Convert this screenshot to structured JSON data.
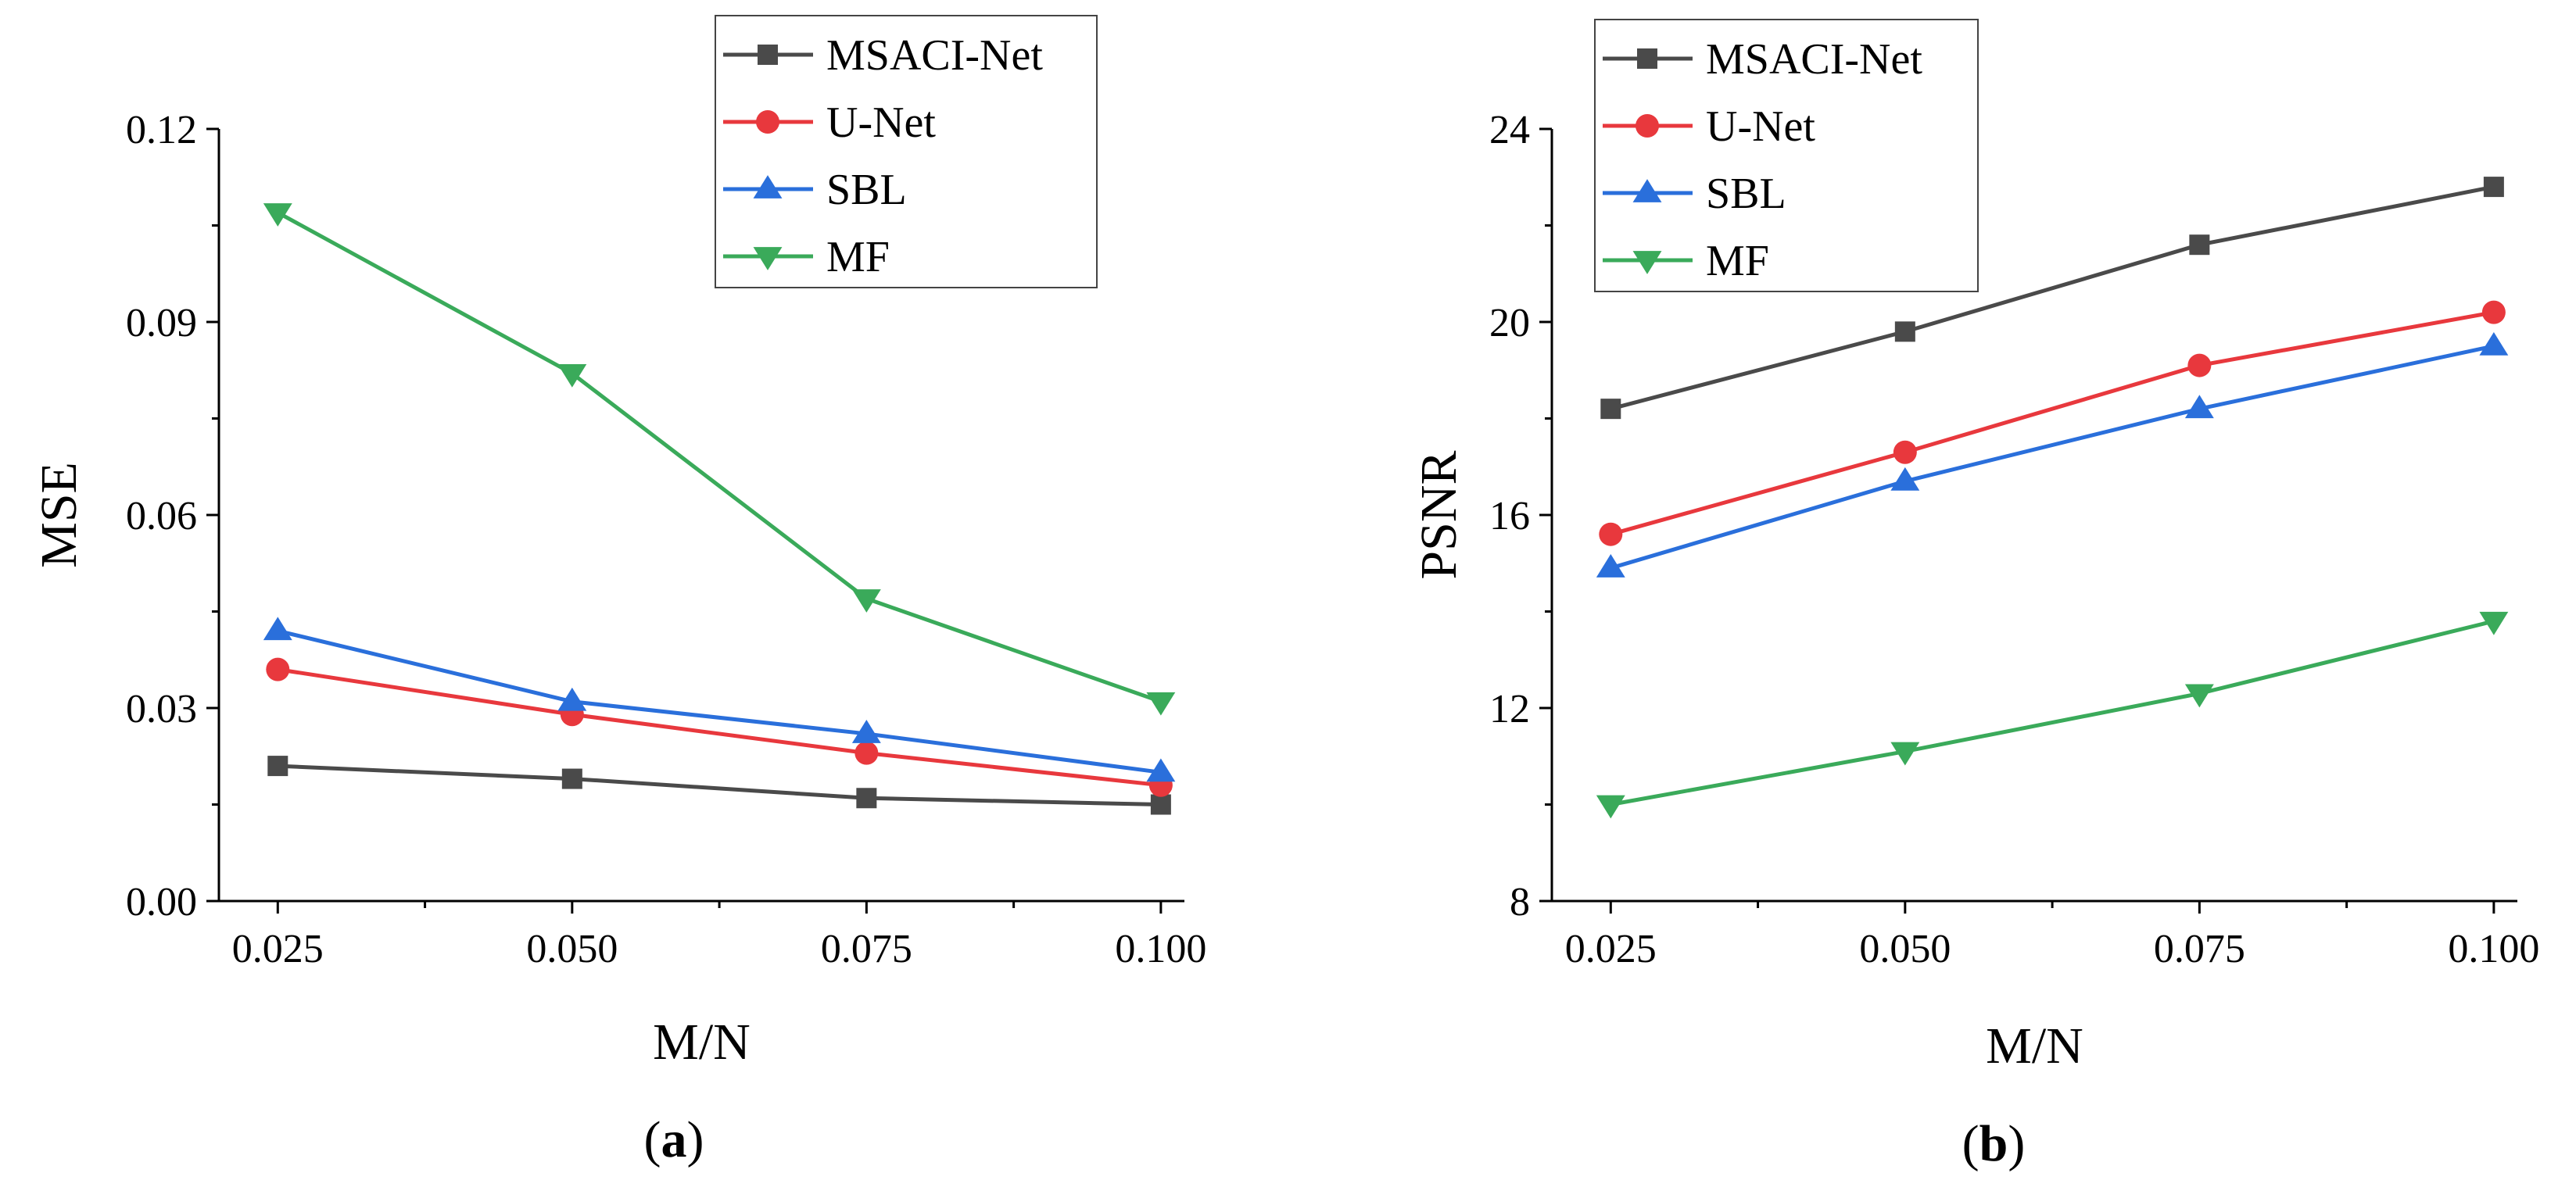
{
  "chart_data": [
    {
      "type": "line",
      "id": "a",
      "caption_letter": "a",
      "xlabel": "M/N",
      "ylabel": "MSE",
      "x": [
        0.025,
        0.05,
        0.075,
        0.1
      ],
      "xticks": [
        "0.025",
        "0.050",
        "0.075",
        "0.100"
      ],
      "xlim": [
        0.02,
        0.102
      ],
      "ylim": [
        0,
        0.12
      ],
      "yticks": [
        "0.00",
        "0.03",
        "0.06",
        "0.09",
        "0.12"
      ],
      "yticks_values": [
        0,
        0.03,
        0.06,
        0.09,
        0.12
      ],
      "legend_position": "top-right",
      "series": [
        {
          "name": "MSACI-Net",
          "marker": "square",
          "color": "#4a4a4a",
          "values": [
            0.021,
            0.019,
            0.016,
            0.015
          ]
        },
        {
          "name": "U-Net",
          "marker": "circle",
          "color": "#e8383d",
          "values": [
            0.036,
            0.029,
            0.023,
            0.018
          ]
        },
        {
          "name": "SBL",
          "marker": "triangle-up",
          "color": "#2a6fdb",
          "values": [
            0.042,
            0.031,
            0.026,
            0.02
          ]
        },
        {
          "name": "MF",
          "marker": "triangle-down",
          "color": "#3aaa5a",
          "values": [
            0.107,
            0.082,
            0.047,
            0.031
          ]
        }
      ]
    },
    {
      "type": "line",
      "id": "b",
      "caption_letter": "b",
      "xlabel": "M/N",
      "ylabel": "PSNR",
      "x": [
        0.025,
        0.05,
        0.075,
        0.1
      ],
      "xticks": [
        "0.025",
        "0.050",
        "0.075",
        "0.100"
      ],
      "xlim": [
        0.02,
        0.102
      ],
      "ylim": [
        8,
        24
      ],
      "yticks": [
        "8",
        "12",
        "16",
        "20",
        "24"
      ],
      "yticks_values": [
        8,
        12,
        16,
        20,
        24
      ],
      "legend_position": "top-left",
      "series": [
        {
          "name": "MSACI-Net",
          "marker": "square",
          "color": "#4a4a4a",
          "values": [
            18.2,
            19.8,
            21.6,
            22.8
          ]
        },
        {
          "name": "U-Net",
          "marker": "circle",
          "color": "#e8383d",
          "values": [
            15.6,
            17.3,
            19.1,
            20.2
          ]
        },
        {
          "name": "SBL",
          "marker": "triangle-up",
          "color": "#2a6fdb",
          "values": [
            14.9,
            16.7,
            18.2,
            19.5
          ]
        },
        {
          "name": "MF",
          "marker": "triangle-down",
          "color": "#3aaa5a",
          "values": [
            10.0,
            11.1,
            12.3,
            13.8
          ]
        }
      ]
    }
  ]
}
